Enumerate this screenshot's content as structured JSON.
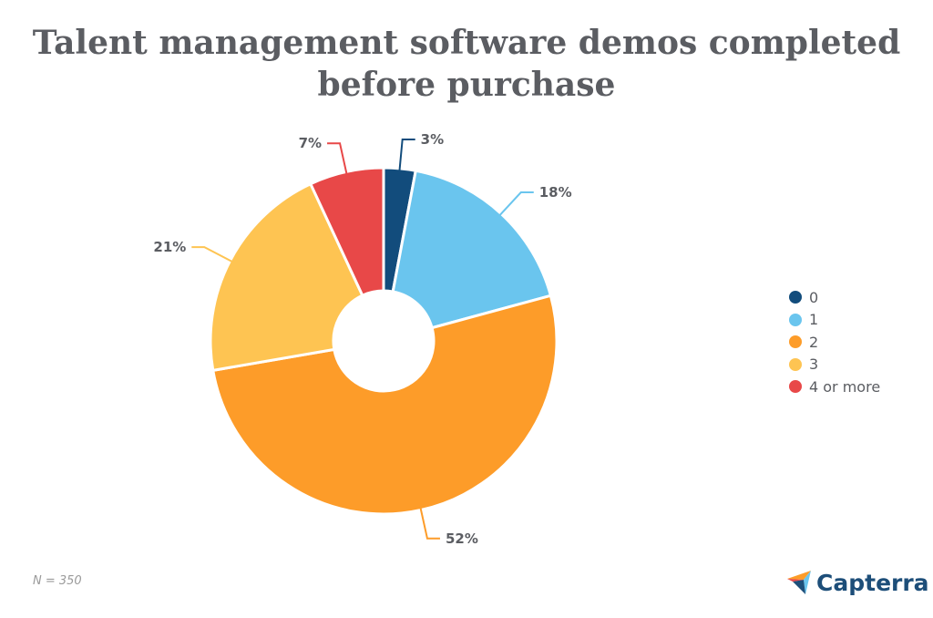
{
  "chart_data": {
    "type": "pie",
    "title": "Talent management software demos completed before purchase",
    "categories": [
      "0",
      "1",
      "2",
      "3",
      "4 or more"
    ],
    "values": [
      3,
      18,
      52,
      21,
      7
    ],
    "labels": [
      "3%",
      "18%",
      "52%",
      "21%",
      "7%"
    ],
    "colors": [
      "#124c7c",
      "#6ac5ee",
      "#fd9c29",
      "#fec452",
      "#e84848"
    ],
    "legend_position": "right",
    "donut": true
  },
  "note": "N = 350",
  "brand": "Capterra"
}
